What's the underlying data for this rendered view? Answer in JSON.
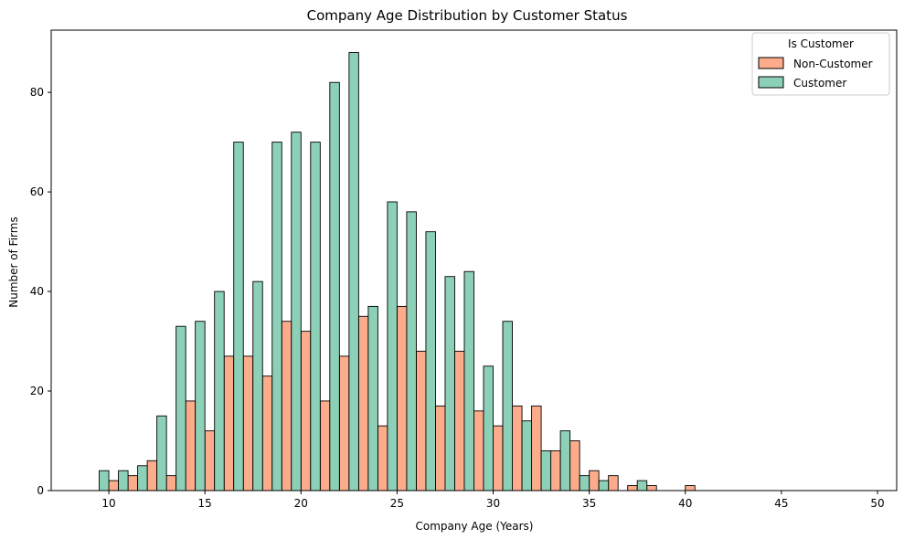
{
  "chart_data": {
    "type": "bar",
    "title": "Company Age Distribution by Customer Status",
    "xlabel": "Company Age (Years)",
    "ylabel": "Number of Firms",
    "xlim": [
      7,
      51
    ],
    "ylim": [
      0,
      92.5
    ],
    "xticks": [
      10,
      15,
      20,
      25,
      30,
      35,
      40,
      45,
      50
    ],
    "yticks": [
      0,
      20,
      40,
      60,
      80
    ],
    "bin_start": 9,
    "bin_width": 1,
    "legend": {
      "title": "Is Customer",
      "placement": "top-right"
    },
    "series": [
      {
        "name": "Non-Customer",
        "color": "#fcac8b",
        "values": [
          0,
          2,
          3,
          6,
          3,
          18,
          12,
          27,
          27,
          23,
          34,
          32,
          18,
          27,
          35,
          13,
          37,
          28,
          17,
          28,
          16,
          13,
          17,
          17,
          8,
          10,
          4,
          3,
          1,
          1,
          0,
          1,
          0
        ]
      },
      {
        "name": "Customer",
        "color": "#8dd0b8",
        "values": [
          4,
          4,
          5,
          15,
          33,
          34,
          40,
          70,
          42,
          70,
          72,
          70,
          82,
          88,
          37,
          58,
          56,
          52,
          43,
          44,
          25,
          34,
          14,
          8,
          12,
          3,
          2,
          0,
          2,
          0,
          0,
          0,
          0
        ]
      }
    ]
  }
}
